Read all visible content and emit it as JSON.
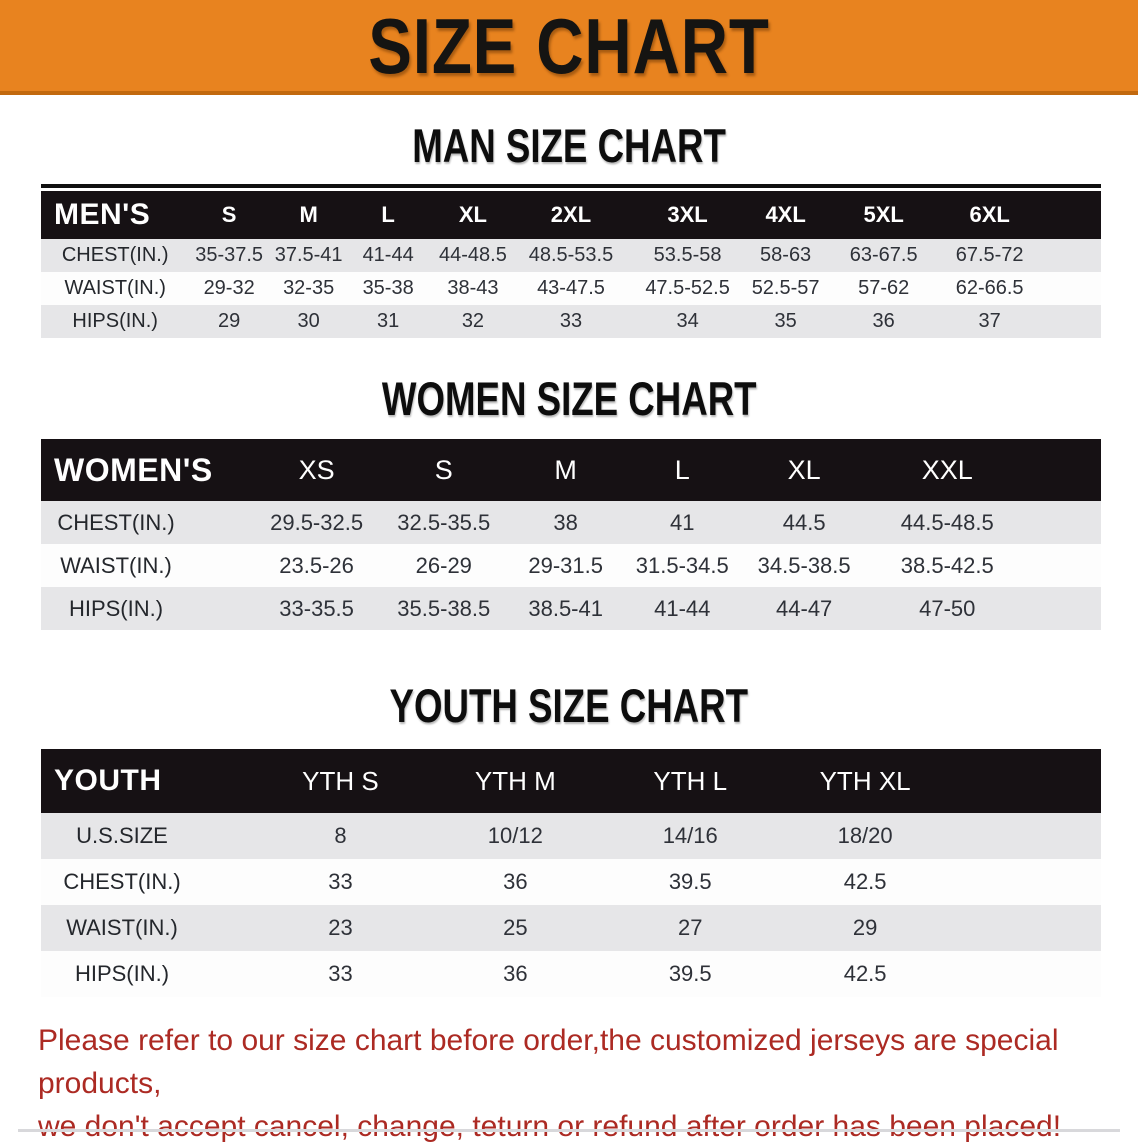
{
  "banner": {
    "title": "SIZE CHART"
  },
  "colors": {
    "banner_bg": "#E8831F",
    "banner_edge": "#C2690E",
    "header_bg": "#161114",
    "row_alt": "#E6E6E8",
    "value_text": "#2E3138",
    "disclaimer": "#AC2A23"
  },
  "sections": [
    {
      "id": "men",
      "heading": "MAN SIZE CHART",
      "table": {
        "group_label": "MEN'S",
        "columns": [
          "S",
          "M",
          "L",
          "XL",
          "2XL",
          "3XL",
          "4XL",
          "5XL",
          "6XL"
        ],
        "rows": [
          {
            "label": "CHEST(IN.)",
            "values": [
              "35-37.5",
              "37.5-41",
              "41-44",
              "44-48.5",
              "48.5-53.5",
              "53.5-58",
              "58-63",
              "63-67.5",
              "67.5-72"
            ]
          },
          {
            "label": "WAIST(IN.)",
            "values": [
              "29-32",
              "32-35",
              "35-38",
              "38-43",
              "43-47.5",
              "47.5-52.5",
              "52.5-57",
              "57-62",
              "62-66.5"
            ]
          },
          {
            "label": "HIPS(IN.)",
            "values": [
              "29",
              "30",
              "31",
              "32",
              "33",
              "34",
              "35",
              "36",
              "37"
            ]
          }
        ]
      }
    },
    {
      "id": "women",
      "heading": "WOMEN SIZE CHART",
      "table": {
        "group_label": "WOMEN'S",
        "columns": [
          "XS",
          "S",
          "M",
          "L",
          "XL",
          "XXL"
        ],
        "rows": [
          {
            "label": "CHEST(IN.)",
            "values": [
              "29.5-32.5",
              "32.5-35.5",
              "38",
              "41",
              "44.5",
              "44.5-48.5"
            ]
          },
          {
            "label": "WAIST(IN.)",
            "values": [
              "23.5-26",
              "26-29",
              "29-31.5",
              "31.5-34.5",
              "34.5-38.5",
              "38.5-42.5"
            ]
          },
          {
            "label": "HIPS(IN.)",
            "values": [
              "33-35.5",
              "35.5-38.5",
              "38.5-41",
              "41-44",
              "44-47",
              "47-50"
            ]
          }
        ]
      }
    },
    {
      "id": "youth",
      "heading": "YOUTH SIZE CHART",
      "table": {
        "group_label": "YOUTH",
        "columns": [
          "YTH S",
          "YTH M",
          "YTH L",
          "YTH XL"
        ],
        "rows": [
          {
            "label": "U.S.SIZE",
            "values": [
              "8",
              "10/12",
              "14/16",
              "18/20"
            ]
          },
          {
            "label": "CHEST(IN.)",
            "values": [
              "33",
              "36",
              "39.5",
              "42.5"
            ]
          },
          {
            "label": "WAIST(IN.)",
            "values": [
              "23",
              "25",
              "27",
              "29"
            ]
          },
          {
            "label": "HIPS(IN.)",
            "values": [
              "33",
              "36",
              "39.5",
              "42.5"
            ]
          }
        ]
      }
    }
  ],
  "disclaimer": {
    "line1": "Please refer to our size chart before order,the customized jerseys are special products,",
    "line2": "we don't accept cancel, change, teturn or refund after order has been placed!"
  }
}
